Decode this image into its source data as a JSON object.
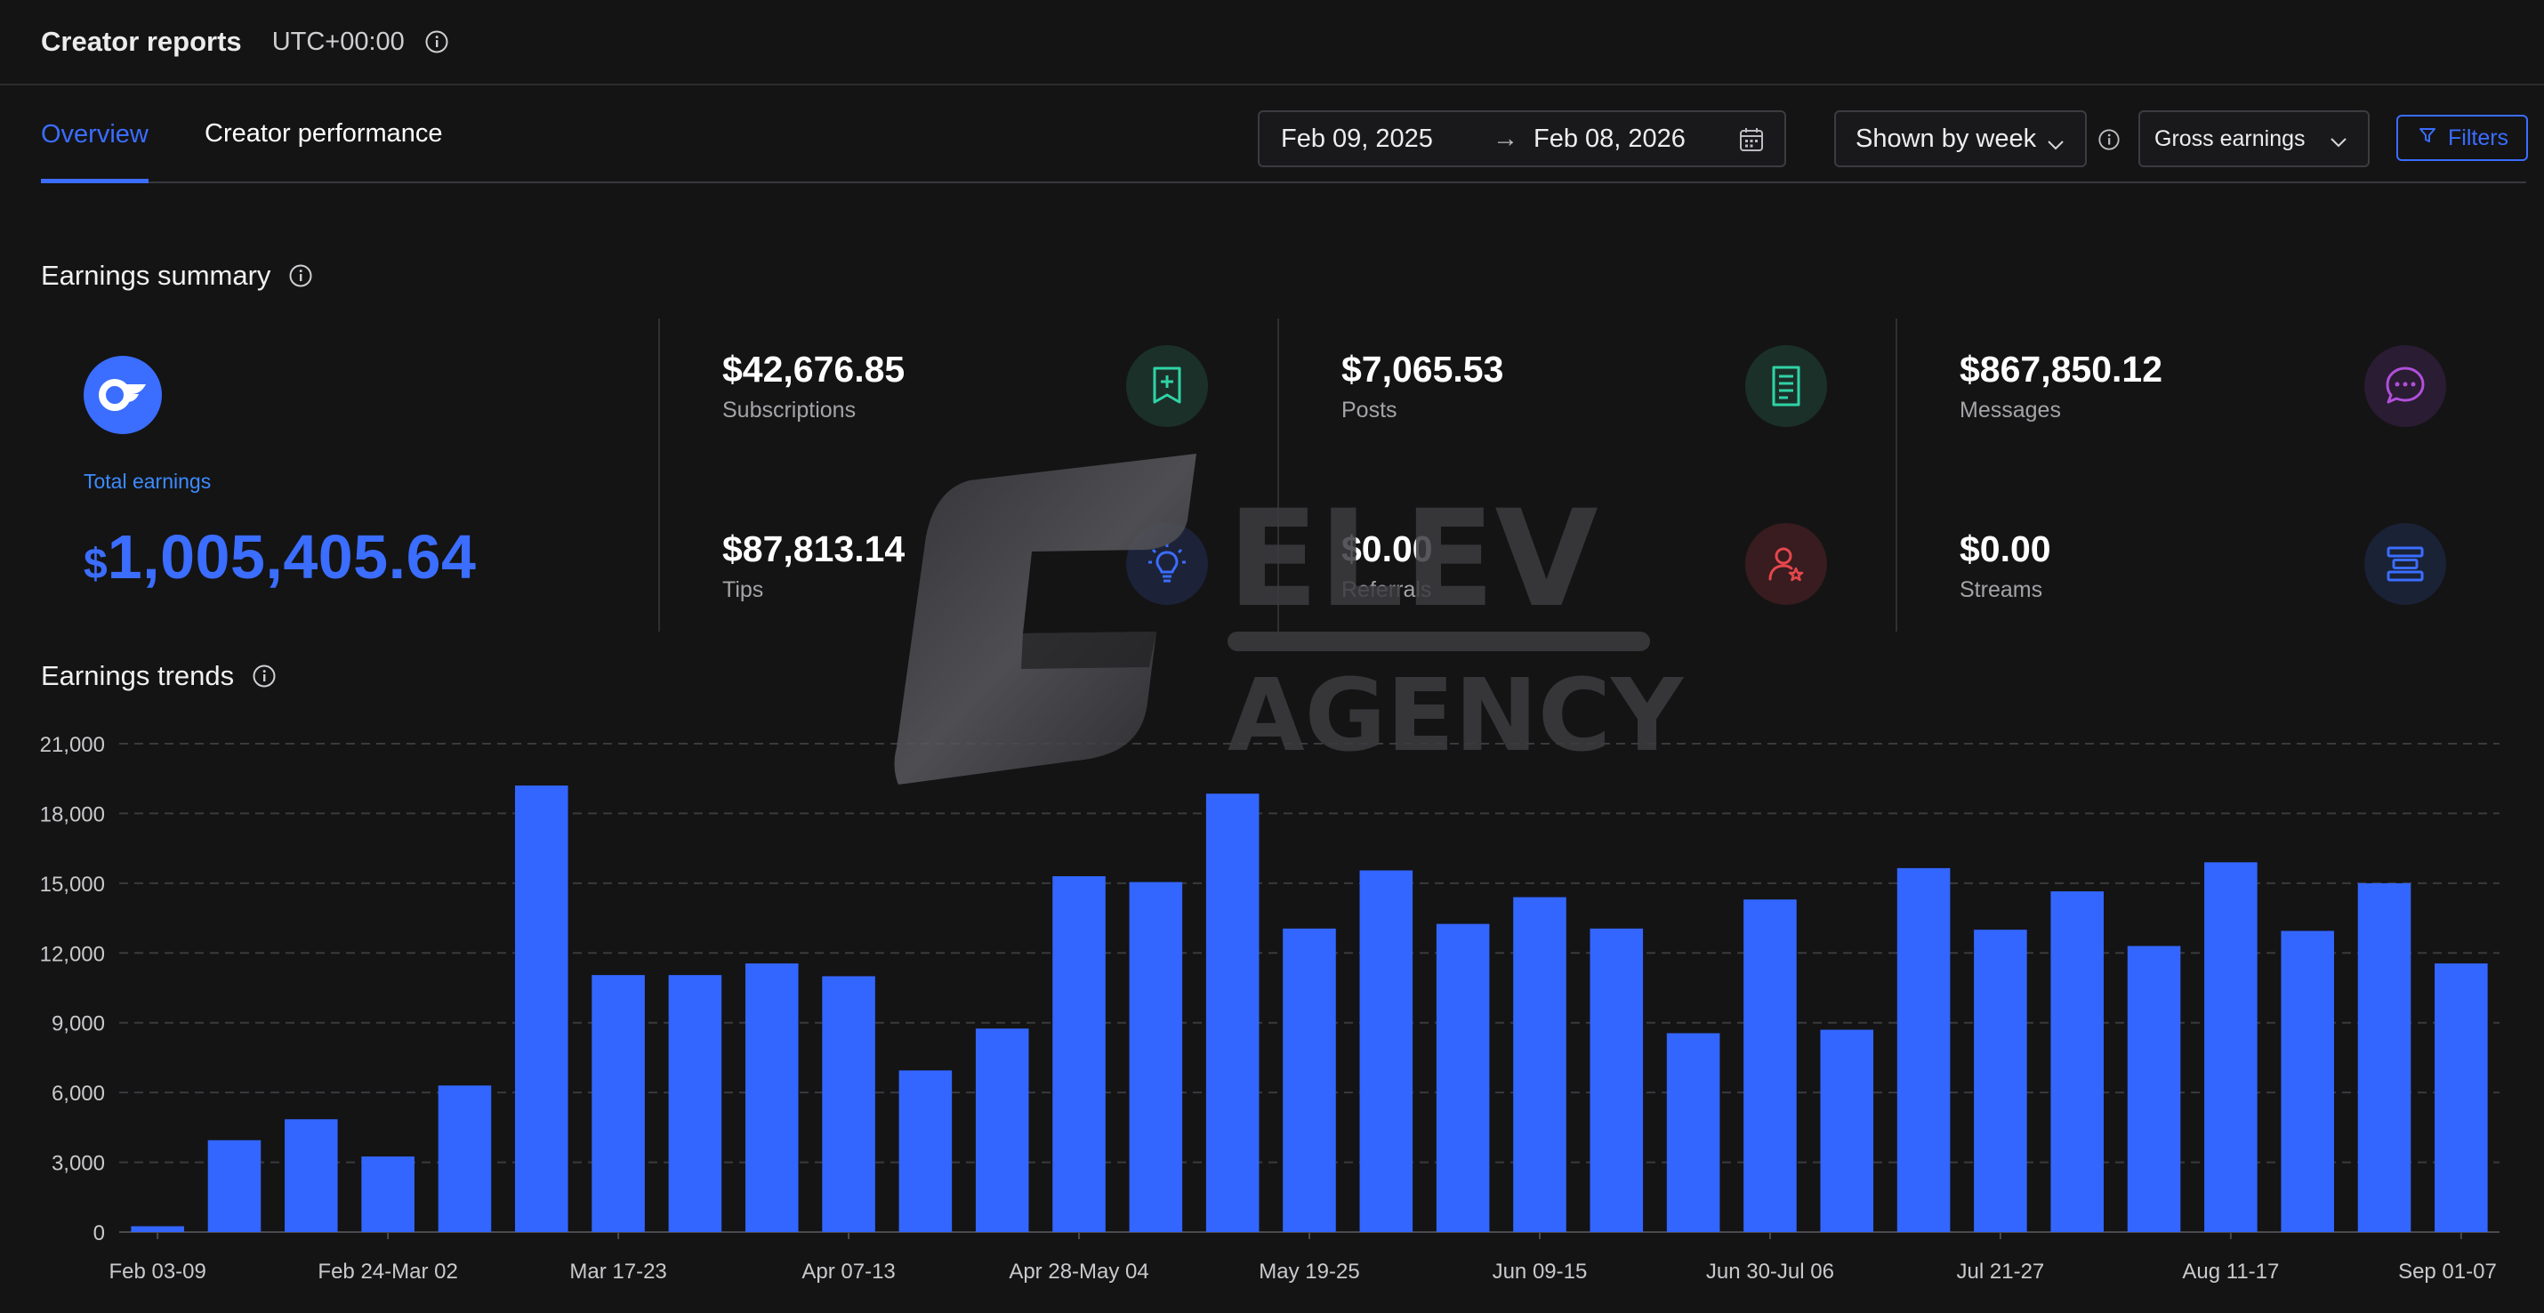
{
  "header": {
    "title": "Creator reports",
    "timezone": "UTC+00:00"
  },
  "tabs": [
    {
      "label": "Overview",
      "active": true
    },
    {
      "label": "Creator performance",
      "active": false
    }
  ],
  "controls": {
    "date_start": "Feb 09, 2025",
    "date_arrow": "→",
    "date_end": "Feb 08, 2026",
    "grouping": "Shown by week",
    "metric": "Gross earnings",
    "filters_label": "Filters"
  },
  "summary": {
    "title": "Earnings summary",
    "total_label": "Total earnings",
    "total_currency": "$",
    "total_value": "1,005,405.64",
    "stats": [
      {
        "value": "$42,676.85",
        "label": "Subscriptions",
        "icon": "subscription-icon",
        "color": "#2fd3a6"
      },
      {
        "value": "$7,065.53",
        "label": "Posts",
        "icon": "document-icon",
        "color": "#2fd3a6"
      },
      {
        "value": "$867,850.12",
        "label": "Messages",
        "icon": "chat-bubble-icon",
        "color": "#b14fd9"
      },
      {
        "value": "$87,813.14",
        "label": "Tips",
        "icon": "lightbulb-icon",
        "color": "#3b6dff"
      },
      {
        "value": "$0.00",
        "label": "Referrals",
        "icon": "user-star-icon",
        "color": "#e5474c"
      },
      {
        "value": "$0.00",
        "label": "Streams",
        "icon": "streams-icon",
        "color": "#3b6dff"
      }
    ]
  },
  "trends": {
    "title": "Earnings trends"
  },
  "watermark": {
    "line1": "ELEV",
    "line2": "AGENCY"
  },
  "colors": {
    "accent": "#3b6dff",
    "background": "#141415",
    "bar": "#3366ff"
  },
  "chart_data": {
    "type": "bar",
    "ylim": [
      0,
      21000
    ],
    "yticks": [
      0,
      3000,
      6000,
      9000,
      12000,
      15000,
      18000,
      21000
    ],
    "ytick_labels": [
      "0",
      "3,000",
      "6,000",
      "9,000",
      "12,000",
      "15,000",
      "18,000",
      "21,000"
    ],
    "grid": true,
    "categories": [
      "Feb 03-09",
      "Feb 10-16",
      "Feb 17-23",
      "Feb 24-Mar 02",
      "Mar 03-09",
      "Mar 10-16",
      "Mar 17-23",
      "Mar 24-30",
      "Mar 31-Apr 06",
      "Apr 07-13",
      "Apr 14-20",
      "Apr 21-27",
      "Apr 28-May 04",
      "May 05-11",
      "May 12-18",
      "May 19-25",
      "May 26-Jun 01",
      "Jun 02-08",
      "Jun 09-15",
      "Jun 16-22",
      "Jun 23-29",
      "Jun 30-Jul 06",
      "Jul 07-13",
      "Jul 14-20",
      "Jul 21-27",
      "Jul 28-Aug 03",
      "Aug 04-10",
      "Aug 11-17",
      "Aug 18-24",
      "Aug 25-31",
      "Sep 01-07"
    ],
    "visible_tick_labels": [
      "Feb 03-09",
      "Feb 24-Mar 02",
      "Mar 17-23",
      "Apr 07-13",
      "Apr 28-May 04",
      "May 19-25",
      "Jun 09-15",
      "Jun 30-Jul 06",
      "Jul 21-27",
      "Aug 11-17",
      "Sep 01-07"
    ],
    "values": [
      250,
      3950,
      4850,
      3250,
      6300,
      19200,
      11050,
      11050,
      11550,
      11000,
      6950,
      8750,
      15300,
      15050,
      18850,
      13050,
      15550,
      13250,
      14400,
      13050,
      8550,
      14300,
      8700,
      15650,
      13000,
      14650,
      12300,
      15900,
      12950,
      15000,
      11550
    ]
  }
}
